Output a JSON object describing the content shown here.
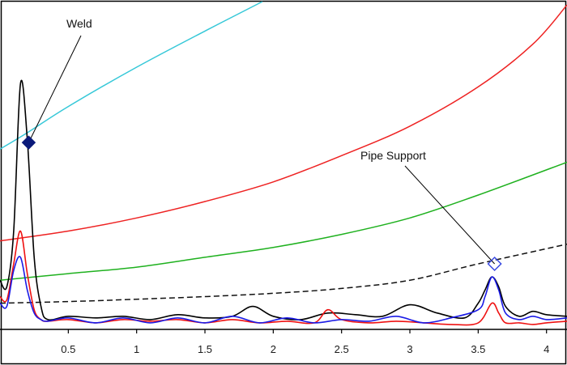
{
  "chart_data": {
    "type": "line",
    "xlim": [
      0,
      4.15
    ],
    "ylim": [
      0,
      1
    ],
    "x_ticks": [
      0.5,
      1,
      1.5,
      2,
      2.5,
      3,
      3.5,
      4
    ],
    "x_tick_labels": [
      "0.5",
      "1",
      "1.5",
      "2",
      "2.5",
      "3",
      "3.5",
      "4"
    ],
    "grid": false,
    "reference_curves": [
      {
        "color": "#36c8d8",
        "style": "solid",
        "x": [
          0,
          0.2,
          0.5,
          1,
          1.5,
          1.92
        ],
        "y": [
          0.55,
          0.6,
          0.68,
          0.8,
          0.91,
          1.0
        ]
      },
      {
        "color": "#ee2222",
        "style": "solid",
        "x": [
          0,
          0.5,
          1,
          1.5,
          2,
          2.5,
          3,
          3.5,
          3.9,
          4.15
        ],
        "y": [
          0.27,
          0.3,
          0.34,
          0.39,
          0.45,
          0.53,
          0.62,
          0.74,
          0.87,
          0.99
        ]
      },
      {
        "color": "#1fb11f",
        "style": "solid",
        "x": [
          0,
          0.5,
          1,
          1.5,
          2,
          2.5,
          3,
          3.5,
          4.15
        ],
        "y": [
          0.15,
          0.17,
          0.19,
          0.22,
          0.25,
          0.29,
          0.34,
          0.41,
          0.51
        ]
      },
      {
        "color": "#111111",
        "style": "dashed",
        "x": [
          0,
          0.5,
          1,
          1.5,
          2,
          2.5,
          3,
          3.5,
          4.15
        ],
        "y": [
          0.08,
          0.085,
          0.092,
          0.1,
          0.11,
          0.125,
          0.15,
          0.2,
          0.26
        ]
      }
    ],
    "series": [
      {
        "color": "#000000",
        "x": [
          0,
          0.05,
          0.1,
          0.15,
          0.2,
          0.25,
          0.3,
          0.35,
          0.5,
          0.7,
          0.9,
          1.1,
          1.3,
          1.5,
          1.7,
          1.85,
          2.0,
          2.2,
          2.4,
          2.6,
          2.8,
          3.0,
          3.2,
          3.4,
          3.5,
          3.55,
          3.6,
          3.65,
          3.7,
          3.8,
          3.9,
          4.0,
          4.15
        ],
        "y": [
          0.15,
          0.13,
          0.3,
          0.75,
          0.58,
          0.22,
          0.07,
          0.03,
          0.04,
          0.035,
          0.04,
          0.03,
          0.045,
          0.035,
          0.04,
          0.07,
          0.04,
          0.03,
          0.05,
          0.045,
          0.04,
          0.075,
          0.05,
          0.035,
          0.08,
          0.12,
          0.16,
          0.13,
          0.07,
          0.04,
          0.055,
          0.045,
          0.04
        ]
      },
      {
        "color": "#ee1111",
        "x": [
          0,
          0.05,
          0.1,
          0.15,
          0.2,
          0.25,
          0.3,
          0.35,
          0.5,
          0.7,
          0.9,
          1.1,
          1.3,
          1.5,
          1.7,
          1.9,
          2.1,
          2.3,
          2.4,
          2.5,
          2.7,
          2.9,
          3.1,
          3.3,
          3.5,
          3.6,
          3.65,
          3.7,
          3.8,
          3.9,
          4.0,
          4.15
        ],
        "y": [
          0.1,
          0.09,
          0.2,
          0.3,
          0.17,
          0.06,
          0.03,
          0.025,
          0.03,
          0.02,
          0.03,
          0.025,
          0.03,
          0.02,
          0.03,
          0.02,
          0.025,
          0.02,
          0.06,
          0.03,
          0.02,
          0.025,
          0.02,
          0.015,
          0.02,
          0.08,
          0.05,
          0.02,
          0.02,
          0.015,
          0.02,
          0.025
        ]
      },
      {
        "color": "#1a1ae6",
        "x": [
          0,
          0.05,
          0.1,
          0.15,
          0.2,
          0.25,
          0.3,
          0.35,
          0.5,
          0.7,
          0.9,
          1.1,
          1.3,
          1.5,
          1.7,
          1.9,
          2.1,
          2.3,
          2.5,
          2.7,
          2.9,
          3.1,
          3.3,
          3.5,
          3.55,
          3.6,
          3.65,
          3.7,
          3.8,
          3.9,
          4.0,
          4.15
        ],
        "y": [
          0.08,
          0.07,
          0.18,
          0.22,
          0.12,
          0.05,
          0.03,
          0.025,
          0.035,
          0.02,
          0.035,
          0.02,
          0.035,
          0.02,
          0.04,
          0.02,
          0.035,
          0.02,
          0.03,
          0.025,
          0.04,
          0.02,
          0.035,
          0.06,
          0.1,
          0.16,
          0.12,
          0.05,
          0.03,
          0.04,
          0.03,
          0.035
        ]
      }
    ],
    "annotations": [
      {
        "text": "Weld",
        "point_x": 0.21,
        "point_y": 0.57,
        "marker": "filled-diamond",
        "marker_color": "#0a1a7a"
      },
      {
        "text": "Pipe Support",
        "point_x": 3.62,
        "point_y": 0.2,
        "marker": "hollow-diamond",
        "marker_color": "#3a4ae0"
      }
    ]
  }
}
